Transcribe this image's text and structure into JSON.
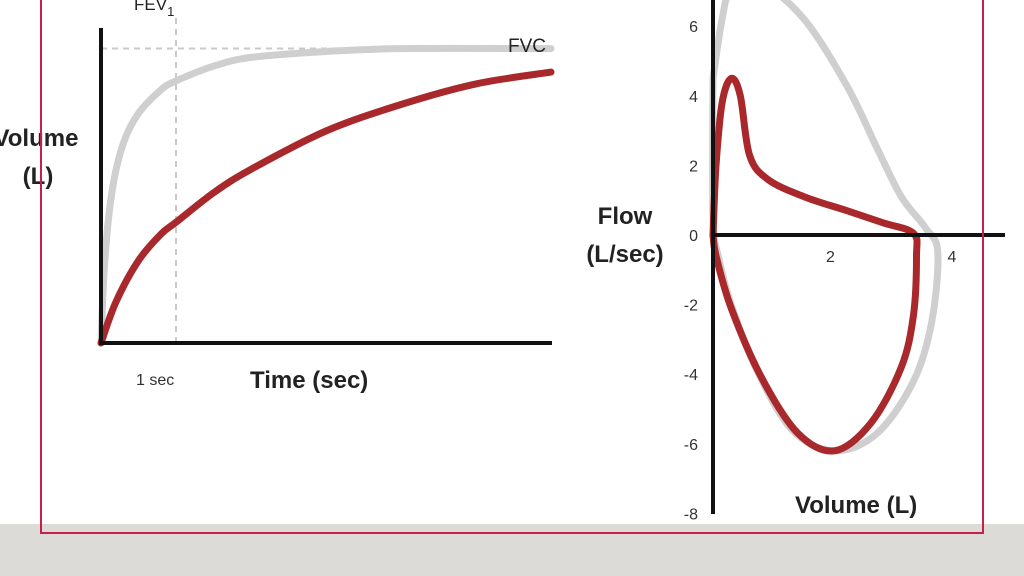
{
  "colors": {
    "normal": "#cfcfcf",
    "patient": "#a8282b",
    "axis": "#111111",
    "frame": "#c51f4a",
    "band": "#dcdbd8"
  },
  "chart_data": [
    {
      "type": "line",
      "xlabel": "Time (sec)",
      "ylabel": "Volume (L)",
      "ylabel_lines": [
        "Volume",
        "(L)"
      ],
      "annotations": {
        "fev1": "FEV",
        "fev1_sub": "1",
        "fvc": "FVC",
        "x_marker": "1 sec"
      },
      "x_marker_value": 1,
      "xlim": [
        0,
        6
      ],
      "ylim": [
        0,
        5.4
      ],
      "grid": false,
      "series": [
        {
          "color": "#cfcfcf",
          "points": [
            [
              0,
              0
            ],
            [
              0.05,
              1.4
            ],
            [
              0.15,
              2.6
            ],
            [
              0.3,
              3.4
            ],
            [
              0.5,
              3.9
            ],
            [
              0.8,
              4.3
            ],
            [
              1,
              4.45
            ],
            [
              1.5,
              4.7
            ],
            [
              2,
              4.85
            ],
            [
              3,
              4.95
            ],
            [
              4,
              5.0
            ],
            [
              6,
              5.0
            ]
          ]
        },
        {
          "color": "#a8282b",
          "points": [
            [
              0,
              0
            ],
            [
              0.2,
              0.7
            ],
            [
              0.5,
              1.4
            ],
            [
              0.8,
              1.85
            ],
            [
              1,
              2.05
            ],
            [
              1.5,
              2.55
            ],
            [
              2,
              2.95
            ],
            [
              3,
              3.6
            ],
            [
              4,
              4.05
            ],
            [
              5,
              4.4
            ],
            [
              6,
              4.6
            ]
          ]
        }
      ]
    },
    {
      "type": "line",
      "xlabel": "Volume (L)",
      "ylabel": "Flow (L/sec)",
      "ylabel_lines": [
        "Flow",
        "(L/sec)"
      ],
      "x_ticks": [
        2,
        4
      ],
      "y_ticks": [
        6,
        4,
        2,
        0,
        -2,
        -4,
        -6,
        -8
      ],
      "y_tick_labels": [
        "6",
        "4",
        "2",
        "0",
        "-2",
        "-4",
        "-6",
        "-8"
      ],
      "xlim": [
        0,
        6.7
      ],
      "ylim": [
        -8,
        6.7
      ],
      "grid": false,
      "series": [
        {
          "color": "#cfcfcf",
          "points": [
            [
              0,
              4.5
            ],
            [
              0.15,
              6.2
            ],
            [
              0.3,
              7.0
            ],
            [
              0.8,
              7.2
            ],
            [
              1.5,
              6.2
            ],
            [
              2.2,
              4.3
            ],
            [
              2.7,
              2.5
            ],
            [
              3.1,
              1.1
            ],
            [
              3.5,
              0.2
            ],
            [
              3.7,
              -0.5
            ],
            [
              3.6,
              -2.5
            ],
            [
              3.3,
              -4.2
            ],
            [
              2.7,
              -5.7
            ],
            [
              2,
              -6.2
            ],
            [
              1.3,
              -5.6
            ],
            [
              0.7,
              -3.8
            ],
            [
              0.3,
              -2.0
            ],
            [
              0.1,
              -0.7
            ],
            [
              0,
              0.5
            ],
            [
              0,
              4.5
            ]
          ]
        },
        {
          "color": "#a8282b",
          "points": [
            [
              0,
              0
            ],
            [
              0.05,
              2.0
            ],
            [
              0.15,
              3.8
            ],
            [
              0.3,
              4.5
            ],
            [
              0.45,
              4.0
            ],
            [
              0.6,
              2.3
            ],
            [
              0.9,
              1.6
            ],
            [
              1.5,
              1.1
            ],
            [
              2.2,
              0.7
            ],
            [
              2.8,
              0.35
            ],
            [
              3.3,
              0.05
            ],
            [
              3.35,
              -0.6
            ],
            [
              3.3,
              -2.3
            ],
            [
              3.1,
              -3.8
            ],
            [
              2.6,
              -5.4
            ],
            [
              2,
              -6.2
            ],
            [
              1.4,
              -5.7
            ],
            [
              0.8,
              -4.1
            ],
            [
              0.3,
              -2.1
            ],
            [
              0.05,
              -0.6
            ],
            [
              0,
              0
            ]
          ]
        }
      ]
    }
  ]
}
